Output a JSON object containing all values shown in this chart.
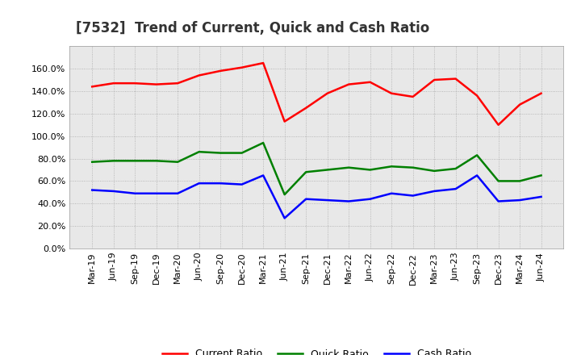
{
  "title": "[7532]  Trend of Current, Quick and Cash Ratio",
  "x_labels": [
    "Mar-19",
    "Jun-19",
    "Sep-19",
    "Dec-19",
    "Mar-20",
    "Jun-20",
    "Sep-20",
    "Dec-20",
    "Mar-21",
    "Jun-21",
    "Sep-21",
    "Dec-21",
    "Mar-22",
    "Jun-22",
    "Sep-22",
    "Dec-22",
    "Mar-23",
    "Jun-23",
    "Sep-23",
    "Dec-23",
    "Mar-24",
    "Jun-24"
  ],
  "current_ratio": [
    1.44,
    1.47,
    1.47,
    1.46,
    1.47,
    1.54,
    1.58,
    1.61,
    1.65,
    1.13,
    1.25,
    1.38,
    1.46,
    1.48,
    1.38,
    1.35,
    1.5,
    1.51,
    1.36,
    1.1,
    1.28,
    1.38
  ],
  "quick_ratio": [
    0.77,
    0.78,
    0.78,
    0.78,
    0.77,
    0.86,
    0.85,
    0.85,
    0.94,
    0.48,
    0.68,
    0.7,
    0.72,
    0.7,
    0.73,
    0.72,
    0.69,
    0.71,
    0.83,
    0.6,
    0.6,
    0.65
  ],
  "cash_ratio": [
    0.52,
    0.51,
    0.49,
    0.49,
    0.49,
    0.58,
    0.58,
    0.57,
    0.65,
    0.27,
    0.44,
    0.43,
    0.42,
    0.44,
    0.49,
    0.47,
    0.51,
    0.53,
    0.65,
    0.42,
    0.43,
    0.46
  ],
  "current_color": "#FF0000",
  "quick_color": "#008000",
  "cash_color": "#0000FF",
  "ylim": [
    0.0,
    1.8
  ],
  "yticks": [
    0.0,
    0.2,
    0.4,
    0.6,
    0.8,
    1.0,
    1.2,
    1.4,
    1.6
  ],
  "bg_color": "#e8e8e8",
  "grid_color": "#aaaaaa",
  "title_fontsize": 12,
  "legend_fontsize": 9,
  "tick_fontsize": 8,
  "line_width": 1.8
}
